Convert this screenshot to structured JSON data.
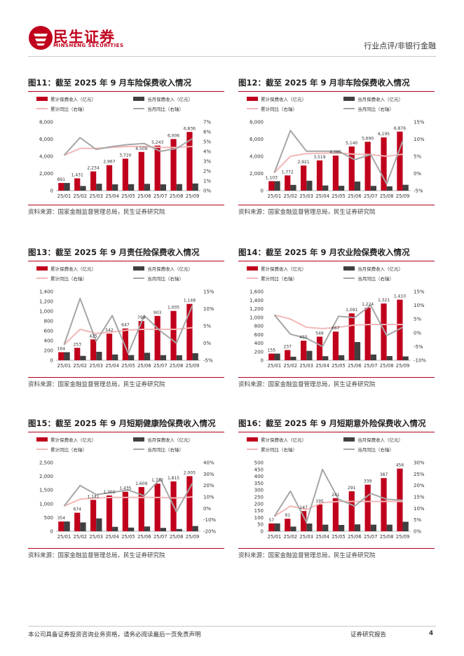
{
  "header": {
    "logo_cn": "民生证券",
    "logo_en": "MINSHENG SECURITIES",
    "category": "行业点评/非银行金融"
  },
  "footer": {
    "disclaimer": "本公司具备证券投资咨询业务资格，请务必阅读最后一页免责声明",
    "report_type": "证券研究报告",
    "page": "4"
  },
  "colors": {
    "cum_bar": "#c0001c",
    "month_bar": "#404040",
    "cum_yoy": "#f2b8b8",
    "month_yoy": "#a6a6a6"
  },
  "legend": {
    "cum_prem": "累计保费收入（亿元）",
    "month_prem": "当月保费收入（亿元）",
    "cum_yoy": "累计同比（右轴）",
    "month_yoy": "当月同比（右轴）"
  },
  "source_text": "资料来源：国家金融监督管理总局，民生证券研究院",
  "chart_data": [
    {
      "id": "fig11",
      "type": "bar",
      "title": "图11：截至 2025 年 9 月车险保费收入情况",
      "categories": [
        "25/01",
        "25/02",
        "25/03",
        "25/04",
        "25/05",
        "25/06",
        "25/07",
        "25/08",
        "25/09"
      ],
      "y_left": {
        "min": 0,
        "max": 8000,
        "ticks": [
          0,
          2000,
          4000,
          6000,
          8000
        ],
        "labels": [
          "0",
          "2,000",
          "4,000",
          "6,000",
          "8,000"
        ]
      },
      "y_right": {
        "min": 0,
        "max": 7,
        "ticks": [
          0,
          1,
          2,
          3,
          4,
          5,
          6,
          7
        ],
        "labels": [
          "0%",
          "1%",
          "2%",
          "3%",
          "4%",
          "5%",
          "6%",
          "7%"
        ]
      },
      "series": [
        {
          "name": "累计保费收入（亿元）",
          "kind": "bar",
          "values": [
            891,
            1431,
            2234,
            2967,
            3720,
            4509,
            5243,
            6006,
            6836
          ],
          "labels": [
            "891",
            "1,431",
            "2,234",
            "2,967",
            "3,720",
            "4,509",
            "5,243",
            "6,006",
            "6,836"
          ]
        },
        {
          "name": "当月保费收入（亿元）",
          "kind": "bar",
          "values": [
            891,
            540,
            803,
            733,
            753,
            789,
            734,
            763,
            830
          ]
        },
        {
          "name": "累计同比（右轴）",
          "kind": "line",
          "values": [
            3.6,
            4.3,
            4.3,
            4.4,
            4.5,
            4.5,
            4.4,
            4.4,
            4.5
          ]
        },
        {
          "name": "当月同比（右轴）",
          "kind": "line",
          "values": [
            3.6,
            5.4,
            4.2,
            4.5,
            4.7,
            4.8,
            4.0,
            4.3,
            5.3
          ]
        }
      ]
    },
    {
      "id": "fig12",
      "type": "bar",
      "title": "图12：截至 2025 年 9 月非车险保费收入情况",
      "categories": [
        "25/01",
        "25/02",
        "25/03",
        "25/04",
        "25/05",
        "25/06",
        "25/07",
        "25/08",
        "25/09"
      ],
      "y_left": {
        "min": 0,
        "max": 8000,
        "ticks": [
          0,
          2000,
          4000,
          6000,
          8000
        ],
        "labels": [
          "0",
          "2,000",
          "4,000",
          "6,000",
          "8,000"
        ]
      },
      "y_right": {
        "min": -5,
        "max": 15,
        "ticks": [
          -5,
          0,
          5,
          10,
          15
        ],
        "labels": [
          "-5%",
          "0%",
          "5%",
          "10%",
          "15%"
        ]
      },
      "series": [
        {
          "name": "累计保费收入（亿元）",
          "kind": "bar",
          "values": [
            1103,
            1772,
            2921,
            3519,
            4085,
            5140,
            5690,
            6195,
            6876
          ],
          "labels": [
            "1,103",
            "1,772",
            "2,921",
            "3,519",
            "4,085",
            "5,140",
            "5,690",
            "6,195",
            "6,876"
          ]
        },
        {
          "name": "当月保费收入（亿元）",
          "kind": "bar",
          "values": [
            1103,
            669,
            1149,
            598,
            566,
            1055,
            550,
            505,
            681
          ]
        },
        {
          "name": "累计同比（右轴）",
          "kind": "line",
          "values": [
            0.2,
            5.0,
            5.8,
            5.9,
            6.0,
            5.6,
            5.5,
            5.0,
            5.6
          ]
        },
        {
          "name": "当月同比（右轴）",
          "kind": "line",
          "values": [
            0.2,
            12.5,
            6.5,
            6.5,
            6.5,
            4.0,
            5.5,
            -3.0,
            9.5
          ]
        }
      ]
    },
    {
      "id": "fig13",
      "type": "bar",
      "title": "图13：截至 2025 年 9 月责任险保费收入情况",
      "categories": [
        "25/01",
        "25/02",
        "25/03",
        "25/04",
        "25/05",
        "25/06",
        "25/07",
        "25/08",
        "25/09"
      ],
      "y_left": {
        "min": 0,
        "max": 1400,
        "ticks": [
          0,
          200,
          400,
          600,
          800,
          1000,
          1200,
          1400
        ],
        "labels": [
          "0",
          "200",
          "400",
          "600",
          "800",
          "1,000",
          "1,200",
          "1,400"
        ]
      },
      "y_right": {
        "min": -5,
        "max": 15,
        "ticks": [
          -5,
          0,
          5,
          10,
          15
        ],
        "labels": [
          "-5%",
          "0%",
          "5%",
          "10%",
          "15%"
        ]
      },
      "series": [
        {
          "name": "累计保费收入（亿元）",
          "kind": "bar",
          "values": [
            164,
            253,
            425,
            542,
            647,
            799,
            903,
            1005,
            1148
          ],
          "labels": [
            "164",
            "253",
            "425",
            "542",
            "647",
            "799",
            "903",
            "1,005",
            "1,148"
          ]
        },
        {
          "name": "当月保费收入（亿元）",
          "kind": "bar",
          "values": [
            164,
            89,
            172,
            117,
            105,
            152,
            104,
            102,
            143
          ]
        },
        {
          "name": "累计同比（右轴）",
          "kind": "line",
          "values": [
            -0.5,
            4.0,
            2.8,
            3.2,
            3.8,
            4.0,
            4.0,
            4.0,
            4.5
          ]
        },
        {
          "name": "当月同比（右轴）",
          "kind": "line",
          "values": [
            -0.5,
            13.0,
            0.5,
            8.0,
            -3.0,
            8.0,
            3.5,
            0.0,
            11.0
          ]
        }
      ]
    },
    {
      "id": "fig14",
      "type": "bar",
      "title": "图14：截至 2025 年 9 月农业险保费收入情况",
      "categories": [
        "25/01",
        "25/02",
        "25/03",
        "25/04",
        "25/05",
        "25/06",
        "25/07",
        "25/08",
        "25/09"
      ],
      "y_left": {
        "min": 0,
        "max": 1600,
        "ticks": [
          0,
          200,
          400,
          600,
          800,
          1000,
          1200,
          1400,
          1600
        ],
        "labels": [
          "0",
          "200",
          "400",
          "600",
          "800",
          "1,000",
          "1,200",
          "1,400",
          "1,600"
        ]
      },
      "y_right": {
        "min": -10,
        "max": 15,
        "ticks": [
          -10,
          -5,
          0,
          5,
          10,
          15
        ],
        "labels": [
          "-10%",
          "-5%",
          "0%",
          "5%",
          "10%",
          "15%"
        ]
      },
      "series": [
        {
          "name": "累计保费收入（亿元）",
          "kind": "bar",
          "values": [
            155,
            237,
            455,
            549,
            667,
            1091,
            1224,
            1321,
            1410
          ],
          "labels": [
            "155",
            "237",
            "455",
            "549",
            "667",
            "1,091",
            "1,224",
            "1,321",
            "1,410"
          ]
        },
        {
          "name": "当月保费收入（亿元）",
          "kind": "bar",
          "values": [
            155,
            82,
            218,
            94,
            118,
            424,
            133,
            97,
            89
          ]
        },
        {
          "name": "累计同比（右轴）",
          "kind": "line",
          "values": [
            6.5,
            5.0,
            2.0,
            1.5,
            2.0,
            2.8,
            3.0,
            3.0,
            3.0
          ]
        },
        {
          "name": "当月同比（右轴）",
          "kind": "line",
          "values": [
            6.5,
            -0.5,
            -2.0,
            -5.0,
            6.0,
            5.5,
            10.0,
            -1.0,
            2.0
          ]
        }
      ]
    },
    {
      "id": "fig15",
      "type": "bar",
      "title": "图15：截至 2025 年 9 月短期健康险保费收入情况",
      "categories": [
        "25/01",
        "25/02",
        "25/03",
        "25/04",
        "25/05",
        "25/06",
        "25/07",
        "25/08",
        "25/09"
      ],
      "y_left": {
        "min": 0,
        "max": 2500,
        "ticks": [
          0,
          500,
          1000,
          1500,
          2000,
          2500
        ],
        "labels": [
          "0",
          "500",
          "1,000",
          "1,500",
          "2,000",
          "2,500"
        ]
      },
      "y_right": {
        "min": -20,
        "max": 40,
        "ticks": [
          -20,
          -10,
          0,
          10,
          20,
          30,
          40
        ],
        "labels": [
          "-20%",
          "-10%",
          "0%",
          "10%",
          "20%",
          "30%",
          "40%"
        ]
      },
      "series": [
        {
          "name": "累计保费收入（亿元）",
          "kind": "bar",
          "values": [
            354,
            674,
            1141,
            1302,
            1435,
            1609,
            1732,
            1815,
            2005
          ],
          "labels": [
            "354",
            "674",
            "1,141",
            "1,302",
            "1,435",
            "1,609",
            "1,732",
            "1,815",
            "2,005"
          ]
        },
        {
          "name": "当月保费收入（亿元）",
          "kind": "bar",
          "values": [
            354,
            320,
            467,
            161,
            133,
            174,
            123,
            83,
            190
          ]
        },
        {
          "name": "累计同比（右轴）",
          "kind": "line",
          "values": [
            2.0,
            8.0,
            9.0,
            9.5,
            9.5,
            9.5,
            9.5,
            9.0,
            10.0
          ]
        },
        {
          "name": "当月同比（右轴）",
          "kind": "line",
          "values": [
            2.0,
            20.0,
            12.0,
            14.0,
            16.0,
            11.0,
            26.0,
            -3.0,
            22.0
          ]
        }
      ]
    },
    {
      "id": "fig16",
      "type": "bar",
      "title": "图16：截至 2025 年 9 月短期意外险保费收入情况",
      "categories": [
        "25/01",
        "25/02",
        "25/03",
        "25/04",
        "25/05",
        "25/06",
        "25/07",
        "25/08",
        "25/09"
      ],
      "y_left": {
        "min": 0,
        "max": 500,
        "ticks": [
          0,
          50,
          100,
          150,
          200,
          250,
          300,
          350,
          400,
          450,
          500
        ],
        "labels": [
          "0",
          "50",
          "100",
          "150",
          "200",
          "250",
          "300",
          "350",
          "400",
          "450",
          "500"
        ]
      },
      "y_right": {
        "min": 0,
        "max": 30,
        "ticks": [
          0,
          5,
          10,
          15,
          20,
          25,
          30
        ],
        "labels": [
          "0%",
          "5%",
          "10%",
          "15%",
          "20%",
          "25%",
          "30%"
        ]
      },
      "series": [
        {
          "name": "累计保费收入（亿元）",
          "kind": "bar",
          "values": [
            57,
            91,
            147,
            195,
            241,
            291,
            339,
            387,
            456
          ],
          "labels": [
            "57",
            "91",
            "147",
            "195",
            "241",
            "291",
            "339",
            "387",
            "456"
          ]
        },
        {
          "name": "当月保费收入（亿元）",
          "kind": "bar",
          "values": [
            57,
            34,
            56,
            48,
            46,
            50,
            48,
            48,
            69
          ]
        },
        {
          "name": "累计同比（右轴）",
          "kind": "line",
          "values": [
            6.5,
            11.0,
            9.5,
            12.5,
            13.0,
            13.0,
            13.0,
            13.0,
            13.0
          ]
        },
        {
          "name": "当月同比（右轴）",
          "kind": "line",
          "values": [
            6.5,
            17.5,
            4.0,
            27.0,
            14.0,
            11.0,
            16.5,
            14.0,
            13.5
          ]
        }
      ]
    }
  ]
}
